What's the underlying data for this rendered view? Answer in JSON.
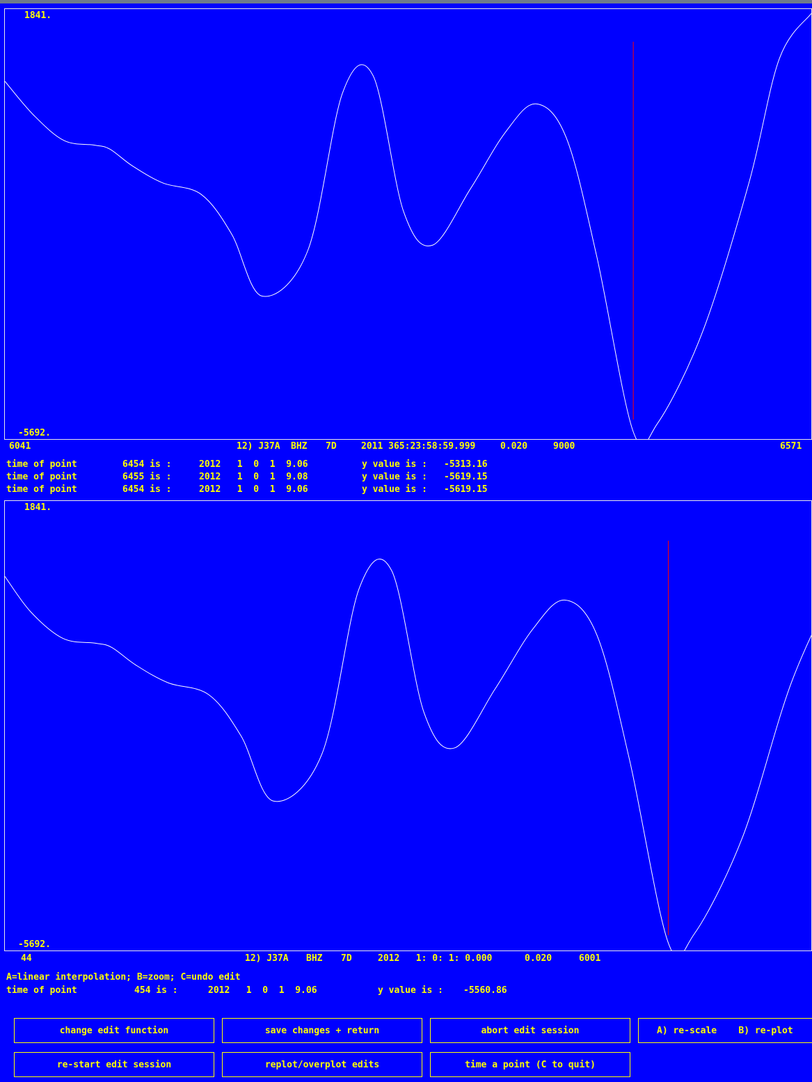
{
  "panel_top": {
    "y_max_label": "1841.",
    "y_min_label": "-5692.",
    "x_start_label": "6041",
    "x_end_label": "6571",
    "header": {
      "station": "12) J37A",
      "component": "BHZ",
      "network": "7D",
      "datetime": "2011 365:23:58:59.999",
      "sample_interval": "0.020",
      "npts": "9000"
    },
    "marker_sample": 6454
  },
  "point_lines_top": [
    {
      "label": "time of point",
      "sample": "6454 is :",
      "time": "2012   1  0  1  9.06",
      "ylabel": "y value is :",
      "yvalue": "-5313.16"
    },
    {
      "label": "time of point",
      "sample": "6455 is :",
      "time": "2012   1  0  1  9.08",
      "ylabel": "y value is :",
      "yvalue": "-5619.15"
    },
    {
      "label": "time of point",
      "sample": "6454 is :",
      "time": "2012   1  0  1  9.06",
      "ylabel": "y value is :",
      "yvalue": "-5619.15"
    }
  ],
  "panel_bottom": {
    "y_max_label": "1841.",
    "y_min_label": "-5692.",
    "x_start_label": "44",
    "header": {
      "station": "12) J37A",
      "component": "BHZ",
      "network": "7D",
      "datetime": "2012   1: 0: 1: 0.000",
      "sample_interval": "0.020",
      "npts": "6001"
    },
    "marker_sample": 454
  },
  "help_text": "A=linear interpolation; B=zoom; C=undo edit",
  "point_line_bottom": {
    "label": "time of point",
    "sample": "454 is :",
    "time": "2012   1  0  1  9.06",
    "ylabel": "y value is :",
    "yvalue": "-5560.86"
  },
  "buttons": {
    "change_edit": "change edit function",
    "save_return": "save changes + return",
    "abort_edit": "abort edit session",
    "rescale_replot": "A) re-scale    B) re-plot",
    "restart_edit": "re-start edit session",
    "replot_overplot": "replot/overplot edits",
    "time_point": "time a point (C to quit)"
  },
  "colors": {
    "background": "#0000ff",
    "text": "#ffff00",
    "trace": "#ffffff",
    "marker": "#ff0000",
    "frame": "#e8e8e8"
  },
  "chart_data": [
    {
      "type": "line",
      "x": [
        6041,
        6060,
        6080,
        6100,
        6110,
        6125,
        6145,
        6170,
        6190,
        6210,
        6240,
        6263,
        6283,
        6303,
        6322,
        6347,
        6370,
        6390,
        6410,
        6430,
        6454,
        6470,
        6500,
        6530,
        6550,
        6571
      ],
      "y": [
        600,
        0,
        -450,
        -530,
        -600,
        -900,
        -1200,
        -1400,
        -2100,
        -3200,
        -2400,
        400,
        700,
        -1700,
        -2300,
        -1300,
        -300,
        200,
        -400,
        -2500,
        -5600,
        -5450,
        -3800,
        -1200,
        1000,
        1800
      ],
      "xlim": [
        6041,
        6571
      ],
      "ylim": [
        -5692,
        1841
      ],
      "marker_x": 6454
    },
    {
      "type": "line",
      "x": [
        44,
        60,
        80,
        100,
        110,
        125,
        145,
        170,
        190,
        210,
        240,
        263,
        283,
        303,
        322,
        347,
        370,
        390,
        410,
        430,
        454,
        470,
        500,
        530,
        560
      ],
      "y": [
        600,
        0,
        -450,
        -530,
        -600,
        -900,
        -1200,
        -1400,
        -2100,
        -3200,
        -2400,
        400,
        700,
        -1700,
        -2300,
        -1300,
        -300,
        200,
        -400,
        -2500,
        -5600,
        -5450,
        -3800,
        -1200,
        600
      ],
      "xlim": [
        44,
        560
      ],
      "ylim": [
        -5692,
        1841
      ],
      "marker_x": 454
    }
  ]
}
